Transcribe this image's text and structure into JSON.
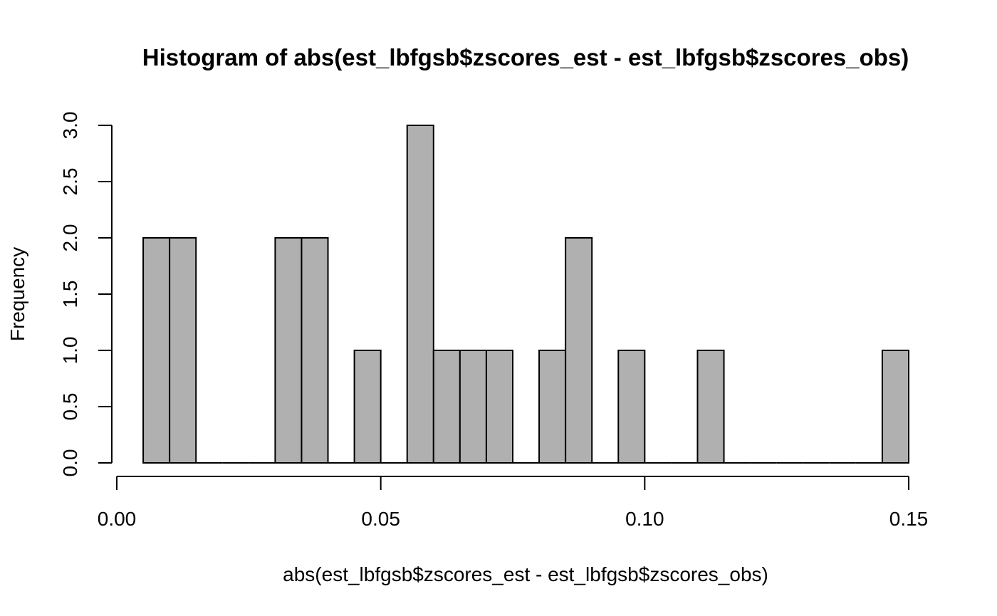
{
  "chart_data": {
    "type": "bar",
    "title": "Histogram of abs(est_lbfgsb$zscores_est - est_lbfgsb$zscores_obs)",
    "xlabel": "abs(est_lbfgsb$zscores_est - est_lbfgsb$zscores_obs)",
    "ylabel": "Frequency",
    "xlim": [
      0.0,
      0.15
    ],
    "ylim": [
      0.0,
      3.0
    ],
    "x_ticks": [
      0.0,
      0.05,
      0.1,
      0.15
    ],
    "x_tick_labels": [
      "0.00",
      "0.05",
      "0.10",
      "0.15"
    ],
    "y_ticks": [
      0.0,
      0.5,
      1.0,
      1.5,
      2.0,
      2.5,
      3.0
    ],
    "y_tick_labels": [
      "0.0",
      "0.5",
      "1.0",
      "1.5",
      "2.0",
      "2.5",
      "3.0"
    ],
    "grid": false,
    "bar_color": "#b0b0b0",
    "bin_edges": [
      0.005,
      0.01,
      0.015,
      0.02,
      0.025,
      0.03,
      0.035,
      0.04,
      0.045,
      0.05,
      0.055,
      0.06,
      0.065,
      0.07,
      0.075,
      0.08,
      0.085,
      0.09,
      0.095,
      0.1,
      0.105,
      0.11,
      0.115,
      0.12,
      0.125,
      0.13,
      0.135,
      0.14,
      0.145,
      0.15
    ],
    "counts": [
      2,
      2,
      0,
      0,
      0,
      2,
      2,
      0,
      1,
      0,
      3,
      1,
      1,
      1,
      0,
      1,
      2,
      0,
      1,
      0,
      0,
      1,
      0,
      0,
      0,
      0,
      0,
      0,
      1
    ]
  }
}
